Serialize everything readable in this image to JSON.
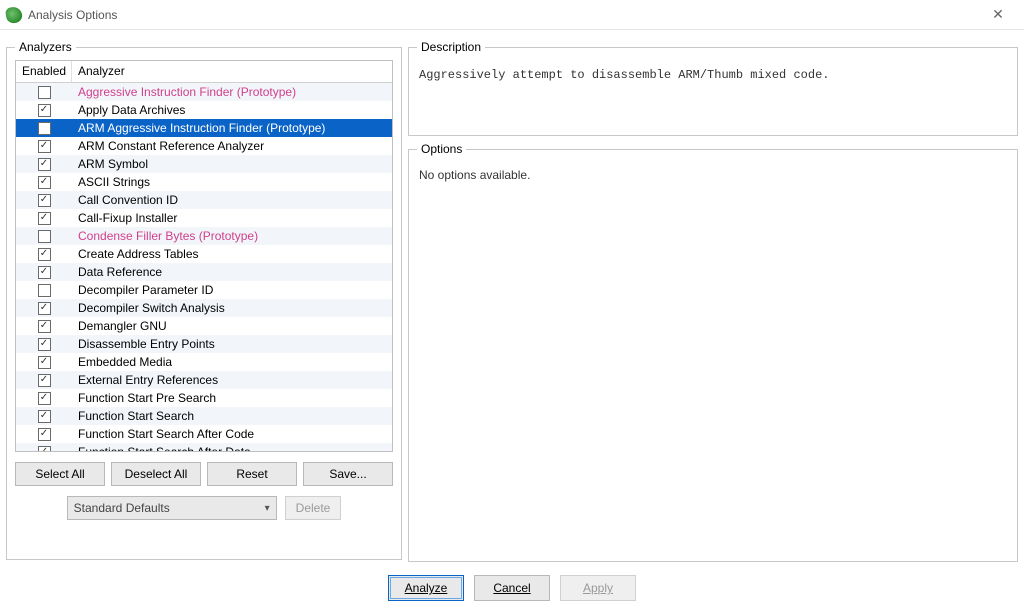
{
  "window": {
    "title": "Analysis Options"
  },
  "analyzers_group": {
    "legend": "Analyzers",
    "col_enabled": "Enabled",
    "col_analyzer": "Analyzer",
    "rows": [
      {
        "label": "Aggressive Instruction Finder (Prototype)",
        "checked": false,
        "prototype": true,
        "selected": false
      },
      {
        "label": "Apply Data Archives",
        "checked": true,
        "prototype": false,
        "selected": false
      },
      {
        "label": "ARM Aggressive Instruction Finder (Prototype)",
        "checked": false,
        "prototype": true,
        "selected": true
      },
      {
        "label": "ARM Constant Reference Analyzer",
        "checked": true,
        "prototype": false,
        "selected": false
      },
      {
        "label": "ARM Symbol",
        "checked": true,
        "prototype": false,
        "selected": false
      },
      {
        "label": "ASCII Strings",
        "checked": true,
        "prototype": false,
        "selected": false
      },
      {
        "label": "Call Convention ID",
        "checked": true,
        "prototype": false,
        "selected": false
      },
      {
        "label": "Call-Fixup Installer",
        "checked": true,
        "prototype": false,
        "selected": false
      },
      {
        "label": "Condense Filler Bytes (Prototype)",
        "checked": false,
        "prototype": true,
        "selected": false
      },
      {
        "label": "Create Address Tables",
        "checked": true,
        "prototype": false,
        "selected": false
      },
      {
        "label": "Data Reference",
        "checked": true,
        "prototype": false,
        "selected": false
      },
      {
        "label": "Decompiler Parameter ID",
        "checked": false,
        "prototype": false,
        "selected": false
      },
      {
        "label": "Decompiler Switch Analysis",
        "checked": true,
        "prototype": false,
        "selected": false
      },
      {
        "label": "Demangler GNU",
        "checked": true,
        "prototype": false,
        "selected": false
      },
      {
        "label": "Disassemble Entry Points",
        "checked": true,
        "prototype": false,
        "selected": false
      },
      {
        "label": "Embedded Media",
        "checked": true,
        "prototype": false,
        "selected": false
      },
      {
        "label": "External Entry References",
        "checked": true,
        "prototype": false,
        "selected": false
      },
      {
        "label": "Function Start Pre Search",
        "checked": true,
        "prototype": false,
        "selected": false
      },
      {
        "label": "Function Start Search",
        "checked": true,
        "prototype": false,
        "selected": false
      },
      {
        "label": "Function Start Search After Code",
        "checked": true,
        "prototype": false,
        "selected": false
      },
      {
        "label": "Function Start Search After Data",
        "checked": true,
        "prototype": false,
        "selected": false
      }
    ],
    "buttons": {
      "select_all": "Select All",
      "deselect_all": "Deselect All",
      "reset": "Reset",
      "save": "Save..."
    },
    "profile": {
      "selected": "Standard Defaults",
      "delete_label": "Delete"
    }
  },
  "description_group": {
    "legend": "Description",
    "text": "Aggressively attempt to disassemble ARM/Thumb mixed code."
  },
  "options_group": {
    "legend": "Options",
    "text": "No options available."
  },
  "bottom": {
    "analyze": "Analyze",
    "cancel": "Cancel",
    "apply": "Apply"
  }
}
